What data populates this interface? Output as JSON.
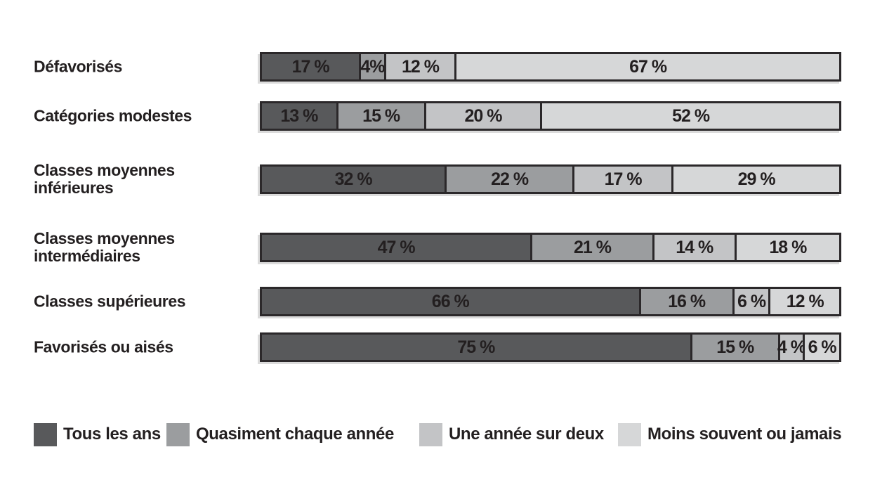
{
  "chart_data": {
    "type": "bar",
    "variant": "horizontal-stacked-100",
    "title": "",
    "xlabel": "",
    "ylabel": "",
    "xlim": [
      0,
      100
    ],
    "grid": false,
    "legend_position": "bottom",
    "categories": [
      "Défavorisés",
      "Catégories modestes",
      "Classes moyennes\ninférieures",
      "Classes moyennes\nintermédiaires",
      "Classes supérieures",
      "Favorisés ou aisés"
    ],
    "series": [
      {
        "name": "Tous les ans",
        "color": "#58595b",
        "values": [
          17,
          13,
          32,
          47,
          66,
          75
        ]
      },
      {
        "name": "Quasiment chaque année",
        "color": "#9b9d9f",
        "values": [
          4,
          15,
          22,
          21,
          16,
          15
        ]
      },
      {
        "name": "Une année sur deux",
        "color": "#c3c4c6",
        "values": [
          12,
          20,
          17,
          14,
          6,
          4
        ]
      },
      {
        "name": "Moins souvent ou jamais",
        "color": "#d6d7d8",
        "values": [
          67,
          52,
          29,
          18,
          12,
          6
        ]
      }
    ],
    "segment_labels": [
      [
        "17 %",
        "4%",
        "12 %",
        "67 %"
      ],
      [
        "13 %",
        "15 %",
        "20 %",
        "52 %"
      ],
      [
        "32 %",
        "22 %",
        "17 %",
        "29 %"
      ],
      [
        "47 %",
        "21 %",
        "14 %",
        "18 %"
      ],
      [
        "66 %",
        "16 %",
        "6 %",
        "12 %"
      ],
      [
        "75 %",
        "15 %",
        "4 %",
        "6 %"
      ]
    ],
    "colors": {
      "border": "#2b282a",
      "text": "#231f20",
      "background": "#ffffff"
    }
  }
}
